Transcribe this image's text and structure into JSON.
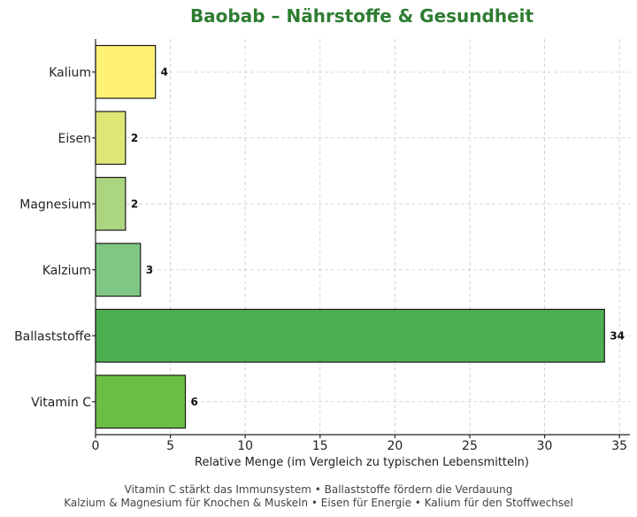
{
  "chart_data": {
    "type": "bar",
    "orientation": "horizontal",
    "title": "Baobab – Nährstoffe & Gesundheit",
    "xlabel": "Relative Menge (im Vergleich zu typischen Lebensmitteln)",
    "ylabel": "",
    "categories": [
      "Vitamin C",
      "Ballaststoffe",
      "Kalzium",
      "Magnesium",
      "Eisen",
      "Kalium"
    ],
    "values": [
      6,
      34,
      3,
      2,
      2,
      4
    ],
    "data_labels": [
      "6",
      "34",
      "3",
      "2",
      "2",
      "4"
    ],
    "colors": [
      "#6cbf45",
      "#4caf50",
      "#80c783",
      "#acd581",
      "#dce775",
      "#fff176"
    ],
    "xlim": [
      0,
      35.7
    ],
    "xticks": [
      0,
      5,
      10,
      15,
      20,
      25,
      30,
      35
    ],
    "grid": true,
    "footnote": [
      "Vitamin C stärkt das Immunsystem • Ballaststoffe fördern die Verdauung",
      "Kalzium & Magnesium für Knochen & Muskeln • Eisen für Energie • Kalium für den Stoffwechsel"
    ]
  }
}
